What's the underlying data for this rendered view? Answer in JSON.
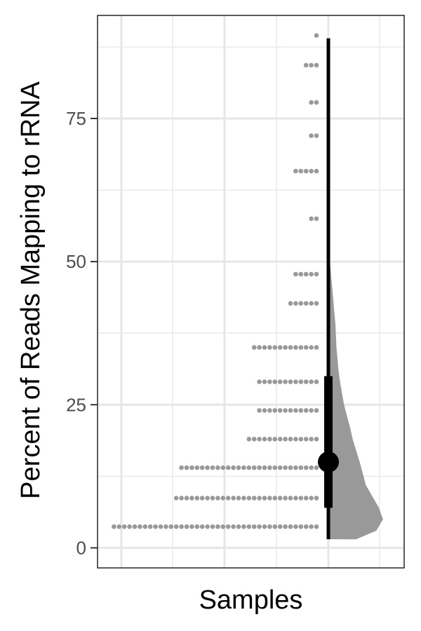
{
  "chart_data": {
    "type": "raincloud",
    "title": "",
    "xlabel": "Samples",
    "ylabel": "Percent of Reads Mapping to rRNA",
    "ylim": [
      -3.5,
      93
    ],
    "y_ticks": [
      0,
      25,
      50,
      75
    ],
    "y_tick_labels": [
      "0",
      "25",
      "50",
      "75"
    ],
    "grid": true,
    "theme": "bw",
    "dot_color": "#999999",
    "violin_color": "#999999",
    "summary_color": "#000000",
    "dot_rows": [
      {
        "y": 3.7,
        "count": 40
      },
      {
        "y": 8.7,
        "count": 28
      },
      {
        "y": 14.0,
        "count": 27
      },
      {
        "y": 19.0,
        "count": 14
      },
      {
        "y": 24.0,
        "count": 12
      },
      {
        "y": 29.0,
        "count": 12
      },
      {
        "y": 35.0,
        "count": 13
      },
      {
        "y": 42.7,
        "count": 6
      },
      {
        "y": 47.8,
        "count": 5
      },
      {
        "y": 57.5,
        "count": 2
      },
      {
        "y": 65.8,
        "count": 5
      },
      {
        "y": 72.0,
        "count": 2
      },
      {
        "y": 77.8,
        "count": 2
      },
      {
        "y": 84.3,
        "count": 3
      },
      {
        "y": 89.5,
        "count": 1
      }
    ],
    "summary": {
      "point": 15.0,
      "inner_interval": [
        7.0,
        30.0
      ],
      "outer_interval": [
        1.5,
        89.0
      ]
    },
    "density": [
      [
        1.5,
        0.55
      ],
      [
        3.0,
        0.95
      ],
      [
        5.0,
        1.08
      ],
      [
        7.0,
        1.0
      ],
      [
        9.0,
        0.87
      ],
      [
        11.0,
        0.74
      ],
      [
        13.0,
        0.68
      ],
      [
        15.0,
        0.62
      ],
      [
        17.0,
        0.55
      ],
      [
        19.0,
        0.48
      ],
      [
        21.0,
        0.43
      ],
      [
        23.0,
        0.37
      ],
      [
        25.0,
        0.31
      ],
      [
        27.0,
        0.27
      ],
      [
        29.0,
        0.23
      ],
      [
        31.0,
        0.2
      ],
      [
        33.0,
        0.18
      ],
      [
        35.0,
        0.16
      ],
      [
        37.0,
        0.15
      ],
      [
        39.0,
        0.14
      ],
      [
        41.0,
        0.12
      ],
      [
        43.0,
        0.1
      ],
      [
        45.0,
        0.08
      ],
      [
        47.0,
        0.06
      ],
      [
        49.0,
        0.04
      ],
      [
        51.0,
        0.02
      ],
      [
        53.0,
        0.01
      ],
      [
        56.0,
        0.005
      ],
      [
        60.0,
        0.01
      ],
      [
        64.0,
        0.025
      ],
      [
        66.0,
        0.03
      ],
      [
        68.0,
        0.02
      ],
      [
        70.0,
        0.01
      ],
      [
        74.0,
        0.005
      ],
      [
        80.0,
        0.004
      ],
      [
        85.0,
        0.003
      ],
      [
        89.0,
        0.0
      ]
    ]
  }
}
